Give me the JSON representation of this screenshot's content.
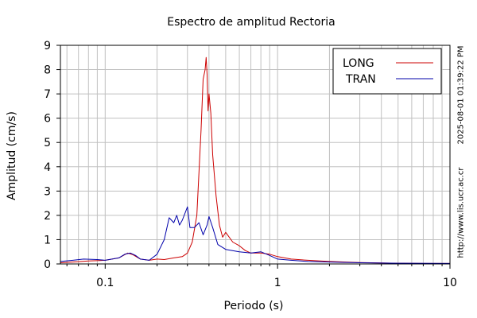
{
  "chart_data": {
    "type": "line",
    "title": "Espectro de amplitud Rectoria",
    "xlabel": "Periodo (s)",
    "ylabel": "Amplitud (cm/s)",
    "xscale": "log",
    "xlim": [
      0.055,
      10
    ],
    "ylim": [
      0,
      9
    ],
    "grid": true,
    "legend_position": "top-right",
    "x_tick_labels": [
      "0.1",
      "1",
      "10"
    ],
    "y_tick_labels": [
      "0",
      "1",
      "2",
      "3",
      "4",
      "5",
      "6",
      "7",
      "8",
      "9"
    ],
    "series": [
      {
        "name": "LONG",
        "color": "#cc0000",
        "points": [
          [
            0.055,
            0.05
          ],
          [
            0.065,
            0.08
          ],
          [
            0.08,
            0.12
          ],
          [
            0.1,
            0.15
          ],
          [
            0.12,
            0.25
          ],
          [
            0.135,
            0.45
          ],
          [
            0.145,
            0.38
          ],
          [
            0.16,
            0.2
          ],
          [
            0.18,
            0.15
          ],
          [
            0.2,
            0.2
          ],
          [
            0.22,
            0.18
          ],
          [
            0.25,
            0.25
          ],
          [
            0.28,
            0.3
          ],
          [
            0.3,
            0.45
          ],
          [
            0.32,
            0.9
          ],
          [
            0.34,
            2.0
          ],
          [
            0.36,
            5.5
          ],
          [
            0.37,
            7.6
          ],
          [
            0.38,
            8.0
          ],
          [
            0.385,
            8.5
          ],
          [
            0.39,
            7.8
          ],
          [
            0.395,
            6.3
          ],
          [
            0.4,
            7.0
          ],
          [
            0.41,
            6.2
          ],
          [
            0.42,
            4.5
          ],
          [
            0.44,
            2.8
          ],
          [
            0.46,
            1.6
          ],
          [
            0.48,
            1.1
          ],
          [
            0.5,
            1.3
          ],
          [
            0.55,
            0.9
          ],
          [
            0.6,
            0.75
          ],
          [
            0.65,
            0.55
          ],
          [
            0.7,
            0.45
          ],
          [
            0.8,
            0.45
          ],
          [
            0.9,
            0.4
          ],
          [
            1.0,
            0.3
          ],
          [
            1.2,
            0.2
          ],
          [
            1.5,
            0.15
          ],
          [
            2.0,
            0.1
          ],
          [
            3.0,
            0.06
          ],
          [
            5.0,
            0.03
          ],
          [
            7.0,
            0.02
          ],
          [
            10.0,
            0.02
          ]
        ]
      },
      {
        "name": "TRAN",
        "color": "#0000aa",
        "points": [
          [
            0.055,
            0.1
          ],
          [
            0.065,
            0.15
          ],
          [
            0.075,
            0.2
          ],
          [
            0.09,
            0.18
          ],
          [
            0.1,
            0.15
          ],
          [
            0.12,
            0.25
          ],
          [
            0.13,
            0.4
          ],
          [
            0.14,
            0.45
          ],
          [
            0.15,
            0.35
          ],
          [
            0.16,
            0.2
          ],
          [
            0.18,
            0.15
          ],
          [
            0.2,
            0.4
          ],
          [
            0.22,
            1.0
          ],
          [
            0.235,
            1.9
          ],
          [
            0.25,
            1.7
          ],
          [
            0.26,
            2.0
          ],
          [
            0.27,
            1.6
          ],
          [
            0.28,
            1.8
          ],
          [
            0.3,
            2.35
          ],
          [
            0.31,
            1.5
          ],
          [
            0.33,
            1.5
          ],
          [
            0.35,
            1.7
          ],
          [
            0.37,
            1.2
          ],
          [
            0.39,
            1.6
          ],
          [
            0.4,
            1.95
          ],
          [
            0.42,
            1.5
          ],
          [
            0.45,
            0.8
          ],
          [
            0.5,
            0.6
          ],
          [
            0.6,
            0.5
          ],
          [
            0.7,
            0.45
          ],
          [
            0.8,
            0.5
          ],
          [
            0.9,
            0.35
          ],
          [
            1.0,
            0.2
          ],
          [
            1.2,
            0.15
          ],
          [
            1.5,
            0.1
          ],
          [
            2.0,
            0.08
          ],
          [
            3.0,
            0.05
          ],
          [
            5.0,
            0.03
          ],
          [
            10.0,
            0.02
          ]
        ]
      }
    ]
  },
  "side_text": {
    "timestamp": "2025-08-01 01:39:22 PM",
    "url": "http://www.lis.ucr.ac.cr"
  }
}
